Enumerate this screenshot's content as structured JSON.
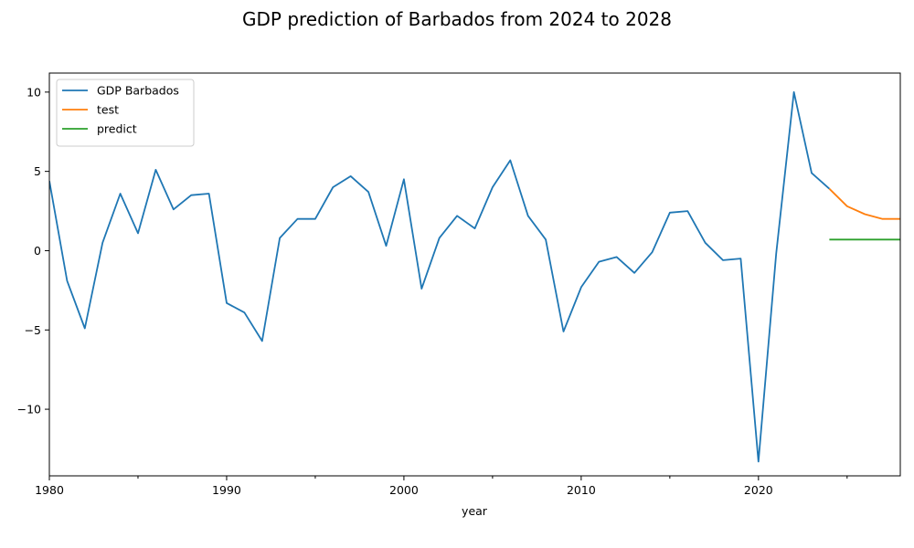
{
  "chart_data": {
    "type": "line",
    "title": "GDP prediction of Barbados from 2024 to 2028",
    "xlabel": "year",
    "ylabel": "",
    "xlim": [
      1980,
      2028
    ],
    "ylim": [
      -14.2,
      11.2
    ],
    "x_ticks": [
      1980,
      1990,
      2000,
      2010,
      2020
    ],
    "x_minor_ticks": [
      1985,
      1995,
      2005,
      2015,
      2025
    ],
    "y_ticks": [
      -10,
      -5,
      0,
      5,
      10
    ],
    "grid": false,
    "legend_position": "upper-left",
    "series": [
      {
        "name": "GDP Barbados",
        "color": "#1f77b4",
        "x": [
          1980,
          1981,
          1982,
          1983,
          1984,
          1985,
          1986,
          1987,
          1988,
          1989,
          1990,
          1991,
          1992,
          1993,
          1994,
          1995,
          1996,
          1997,
          1998,
          1999,
          2000,
          2001,
          2002,
          2003,
          2004,
          2005,
          2006,
          2007,
          2008,
          2009,
          2010,
          2011,
          2012,
          2013,
          2014,
          2015,
          2016,
          2017,
          2018,
          2019,
          2020,
          2021,
          2022,
          2023,
          2024
        ],
        "y": [
          4.4,
          -1.9,
          -4.9,
          0.5,
          3.6,
          1.1,
          5.1,
          2.6,
          3.5,
          3.6,
          -3.3,
          -3.9,
          -5.7,
          0.8,
          2.0,
          2.0,
          4.0,
          4.7,
          3.7,
          0.3,
          4.5,
          -2.4,
          0.8,
          2.2,
          1.4,
          4.0,
          5.7,
          2.2,
          0.7,
          -5.1,
          -2.3,
          -0.7,
          -0.4,
          -1.4,
          -0.1,
          2.4,
          2.5,
          0.5,
          -0.6,
          -0.5,
          -13.3,
          -0.2,
          10.0,
          4.9,
          3.9
        ]
      },
      {
        "name": "test",
        "color": "#ff7f0e",
        "x": [
          2024,
          2025,
          2026,
          2027,
          2028
        ],
        "y": [
          3.9,
          2.8,
          2.3,
          2.0,
          2.0
        ]
      },
      {
        "name": "predict",
        "color": "#2ca02c",
        "x": [
          2024,
          2025,
          2026,
          2027,
          2028
        ],
        "y": [
          0.7,
          0.7,
          0.7,
          0.7,
          0.7
        ]
      }
    ]
  }
}
